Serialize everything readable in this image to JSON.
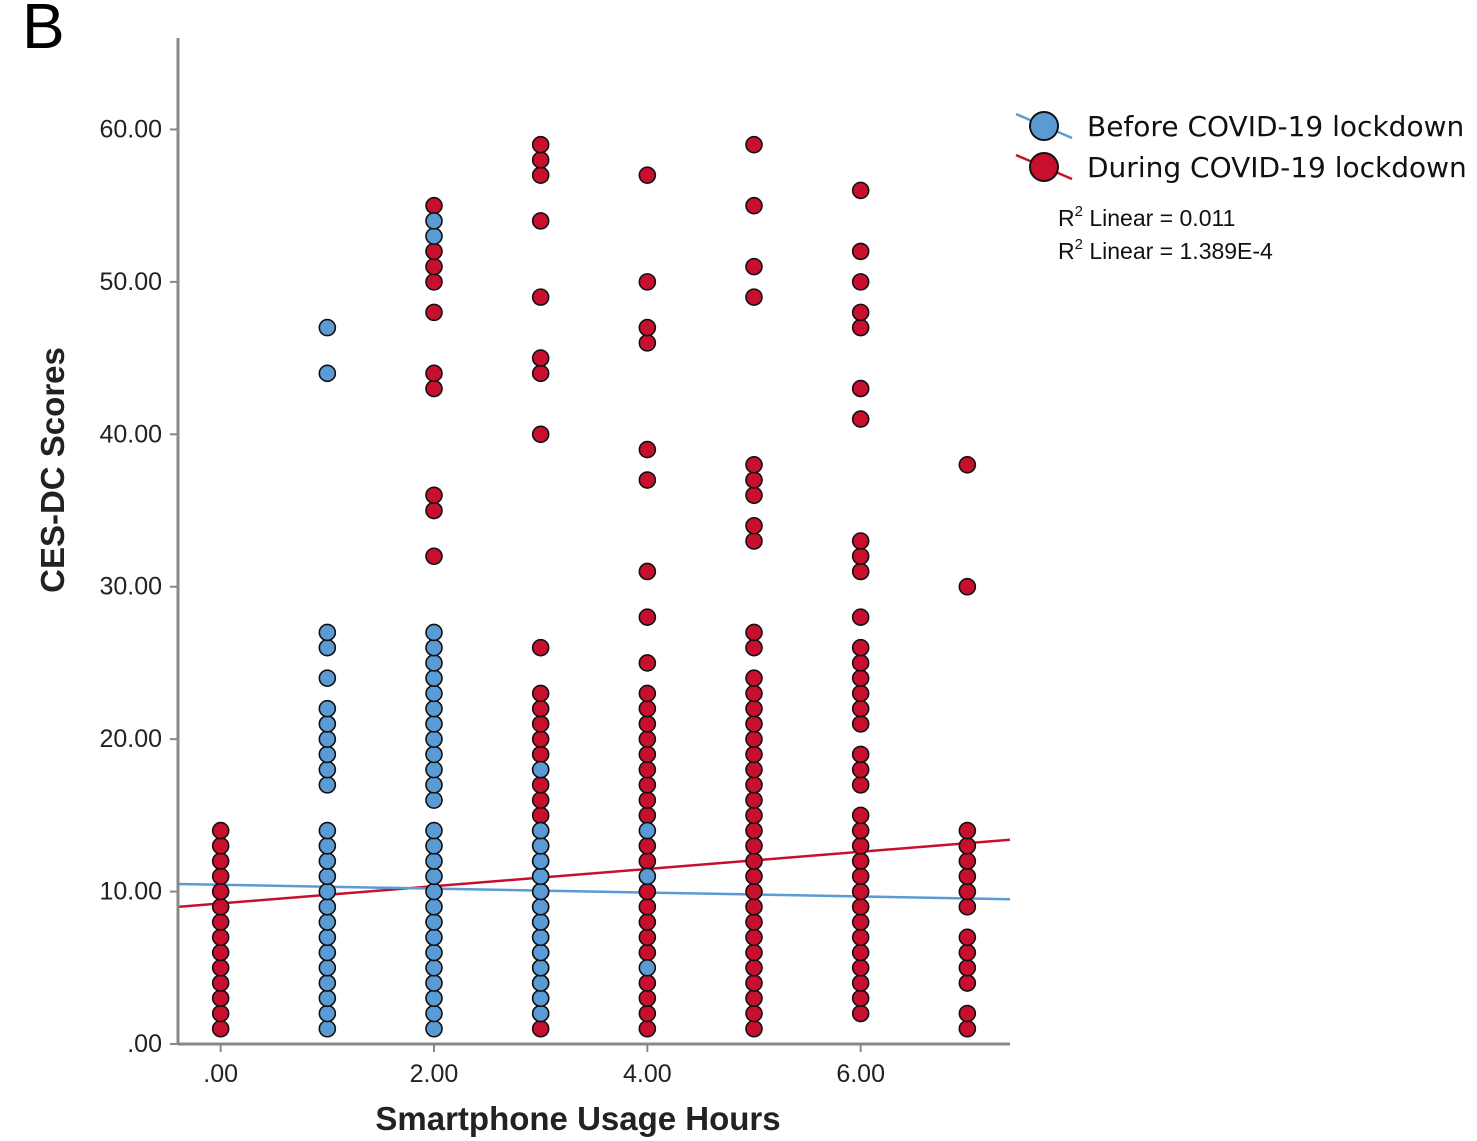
{
  "chart_data": {
    "type": "scatter",
    "panel_label": "B",
    "xlabel": "Smartphone Usage Hours",
    "ylabel": "CES-DC  Scores",
    "xlim": [
      -0.4,
      7.4
    ],
    "ylim": [
      0,
      66
    ],
    "x_ticks": [
      {
        "value": 0,
        "label": ".00"
      },
      {
        "value": 2,
        "label": "2.00"
      },
      {
        "value": 4,
        "label": "4.00"
      },
      {
        "value": 6,
        "label": "6.00"
      }
    ],
    "y_ticks": [
      {
        "value": 0,
        "label": ".00"
      },
      {
        "value": 10,
        "label": "10.00"
      },
      {
        "value": 20,
        "label": "20.00"
      },
      {
        "value": 30,
        "label": "30.00"
      },
      {
        "value": 40,
        "label": "40.00"
      },
      {
        "value": 50,
        "label": "50.00"
      },
      {
        "value": 60,
        "label": "60.00"
      }
    ],
    "grid": false,
    "legend_position": "top-right",
    "series": [
      {
        "name": "During COVID-19 lockdown",
        "color": "#c8102e",
        "points": [
          [
            0,
            1
          ],
          [
            0,
            2
          ],
          [
            0,
            3
          ],
          [
            0,
            4
          ],
          [
            0,
            5
          ],
          [
            0,
            6
          ],
          [
            0,
            7
          ],
          [
            0,
            8
          ],
          [
            0,
            9
          ],
          [
            0,
            10
          ],
          [
            0,
            11
          ],
          [
            0,
            12
          ],
          [
            0,
            13
          ],
          [
            0,
            14
          ],
          [
            2,
            32
          ],
          [
            2,
            35
          ],
          [
            2,
            36
          ],
          [
            2,
            43
          ],
          [
            2,
            44
          ],
          [
            2,
            48
          ],
          [
            2,
            50
          ],
          [
            2,
            51
          ],
          [
            2,
            52
          ],
          [
            2,
            55
          ],
          [
            3,
            1
          ],
          [
            3,
            2
          ],
          [
            3,
            3
          ],
          [
            3,
            4
          ],
          [
            3,
            5
          ],
          [
            3,
            6
          ],
          [
            3,
            7
          ],
          [
            3,
            8
          ],
          [
            3,
            9
          ],
          [
            3,
            10
          ],
          [
            3,
            11
          ],
          [
            3,
            12
          ],
          [
            3,
            13
          ],
          [
            3,
            14
          ],
          [
            3,
            15
          ],
          [
            3,
            16
          ],
          [
            3,
            17
          ],
          [
            3,
            18
          ],
          [
            3,
            19
          ],
          [
            3,
            20
          ],
          [
            3,
            21
          ],
          [
            3,
            22
          ],
          [
            3,
            23
          ],
          [
            3,
            26
          ],
          [
            3,
            40
          ],
          [
            3,
            44
          ],
          [
            3,
            45
          ],
          [
            3,
            49
          ],
          [
            3,
            54
          ],
          [
            3,
            57
          ],
          [
            3,
            58
          ],
          [
            3,
            59
          ],
          [
            4,
            1
          ],
          [
            4,
            2
          ],
          [
            4,
            3
          ],
          [
            4,
            4
          ],
          [
            4,
            6
          ],
          [
            4,
            7
          ],
          [
            4,
            8
          ],
          [
            4,
            9
          ],
          [
            4,
            10
          ],
          [
            4,
            12
          ],
          [
            4,
            13
          ],
          [
            4,
            15
          ],
          [
            4,
            16
          ],
          [
            4,
            17
          ],
          [
            4,
            18
          ],
          [
            4,
            19
          ],
          [
            4,
            20
          ],
          [
            4,
            21
          ],
          [
            4,
            22
          ],
          [
            4,
            23
          ],
          [
            4,
            25
          ],
          [
            4,
            28
          ],
          [
            4,
            31
          ],
          [
            4,
            37
          ],
          [
            4,
            39
          ],
          [
            4,
            46
          ],
          [
            4,
            47
          ],
          [
            4,
            50
          ],
          [
            4,
            57
          ],
          [
            5,
            1
          ],
          [
            5,
            2
          ],
          [
            5,
            3
          ],
          [
            5,
            4
          ],
          [
            5,
            5
          ],
          [
            5,
            6
          ],
          [
            5,
            7
          ],
          [
            5,
            8
          ],
          [
            5,
            9
          ],
          [
            5,
            10
          ],
          [
            5,
            11
          ],
          [
            5,
            12
          ],
          [
            5,
            13
          ],
          [
            5,
            14
          ],
          [
            5,
            15
          ],
          [
            5,
            16
          ],
          [
            5,
            17
          ],
          [
            5,
            18
          ],
          [
            5,
            19
          ],
          [
            5,
            20
          ],
          [
            5,
            21
          ],
          [
            5,
            22
          ],
          [
            5,
            23
          ],
          [
            5,
            24
          ],
          [
            5,
            26
          ],
          [
            5,
            27
          ],
          [
            5,
            33
          ],
          [
            5,
            34
          ],
          [
            5,
            36
          ],
          [
            5,
            37
          ],
          [
            5,
            38
          ],
          [
            5,
            49
          ],
          [
            5,
            51
          ],
          [
            5,
            55
          ],
          [
            5,
            59
          ],
          [
            6,
            2
          ],
          [
            6,
            3
          ],
          [
            6,
            4
          ],
          [
            6,
            5
          ],
          [
            6,
            6
          ],
          [
            6,
            7
          ],
          [
            6,
            8
          ],
          [
            6,
            9
          ],
          [
            6,
            10
          ],
          [
            6,
            11
          ],
          [
            6,
            12
          ],
          [
            6,
            13
          ],
          [
            6,
            14
          ],
          [
            6,
            15
          ],
          [
            6,
            17
          ],
          [
            6,
            18
          ],
          [
            6,
            19
          ],
          [
            6,
            21
          ],
          [
            6,
            22
          ],
          [
            6,
            23
          ],
          [
            6,
            24
          ],
          [
            6,
            25
          ],
          [
            6,
            26
          ],
          [
            6,
            28
          ],
          [
            6,
            31
          ],
          [
            6,
            32
          ],
          [
            6,
            33
          ],
          [
            6,
            41
          ],
          [
            6,
            43
          ],
          [
            6,
            47
          ],
          [
            6,
            48
          ],
          [
            6,
            50
          ],
          [
            6,
            52
          ],
          [
            6,
            56
          ],
          [
            7,
            1
          ],
          [
            7,
            2
          ],
          [
            7,
            4
          ],
          [
            7,
            5
          ],
          [
            7,
            6
          ],
          [
            7,
            7
          ],
          [
            7,
            9
          ],
          [
            7,
            10
          ],
          [
            7,
            11
          ],
          [
            7,
            12
          ],
          [
            7,
            13
          ],
          [
            7,
            14
          ],
          [
            7,
            30
          ],
          [
            7,
            38
          ]
        ],
        "fit": {
          "x": [
            -0.4,
            7.4
          ],
          "y": [
            9.0,
            13.4
          ]
        }
      },
      {
        "name": "Before COVID-19 lockdown",
        "color": "#5b9bd5",
        "points": [
          [
            1,
            1
          ],
          [
            1,
            2
          ],
          [
            1,
            3
          ],
          [
            1,
            4
          ],
          [
            1,
            5
          ],
          [
            1,
            6
          ],
          [
            1,
            7
          ],
          [
            1,
            8
          ],
          [
            1,
            9
          ],
          [
            1,
            10
          ],
          [
            1,
            11
          ],
          [
            1,
            12
          ],
          [
            1,
            13
          ],
          [
            1,
            14
          ],
          [
            1,
            17
          ],
          [
            1,
            18
          ],
          [
            1,
            19
          ],
          [
            1,
            20
          ],
          [
            1,
            21
          ],
          [
            1,
            22
          ],
          [
            1,
            24
          ],
          [
            1,
            26
          ],
          [
            1,
            27
          ],
          [
            1,
            44
          ],
          [
            1,
            47
          ],
          [
            2,
            1
          ],
          [
            2,
            2
          ],
          [
            2,
            3
          ],
          [
            2,
            4
          ],
          [
            2,
            5
          ],
          [
            2,
            6
          ],
          [
            2,
            7
          ],
          [
            2,
            8
          ],
          [
            2,
            9
          ],
          [
            2,
            10
          ],
          [
            2,
            11
          ],
          [
            2,
            12
          ],
          [
            2,
            13
          ],
          [
            2,
            14
          ],
          [
            2,
            16
          ],
          [
            2,
            17
          ],
          [
            2,
            18
          ],
          [
            2,
            19
          ],
          [
            2,
            20
          ],
          [
            2,
            21
          ],
          [
            2,
            22
          ],
          [
            2,
            23
          ],
          [
            2,
            24
          ],
          [
            2,
            25
          ],
          [
            2,
            26
          ],
          [
            2,
            27
          ],
          [
            2,
            53
          ],
          [
            2,
            54
          ],
          [
            3,
            2
          ],
          [
            3,
            3
          ],
          [
            3,
            4
          ],
          [
            3,
            5
          ],
          [
            3,
            6
          ],
          [
            3,
            7
          ],
          [
            3,
            8
          ],
          [
            3,
            9
          ],
          [
            3,
            10
          ],
          [
            3,
            11
          ],
          [
            3,
            12
          ],
          [
            3,
            13
          ],
          [
            3,
            14
          ],
          [
            3,
            18
          ],
          [
            4,
            5
          ],
          [
            4,
            11
          ],
          [
            4,
            14
          ]
        ],
        "fit": {
          "x": [
            -0.4,
            7.4
          ],
          "y": [
            10.5,
            9.5
          ]
        }
      }
    ],
    "r2_labels": [
      {
        "prefix": "R",
        "sup": "2",
        "text": " Linear = 0.011"
      },
      {
        "prefix": "R",
        "sup": "2",
        "text": " Linear = 1.389E-4"
      }
    ],
    "legend_order": [
      1,
      0
    ]
  }
}
